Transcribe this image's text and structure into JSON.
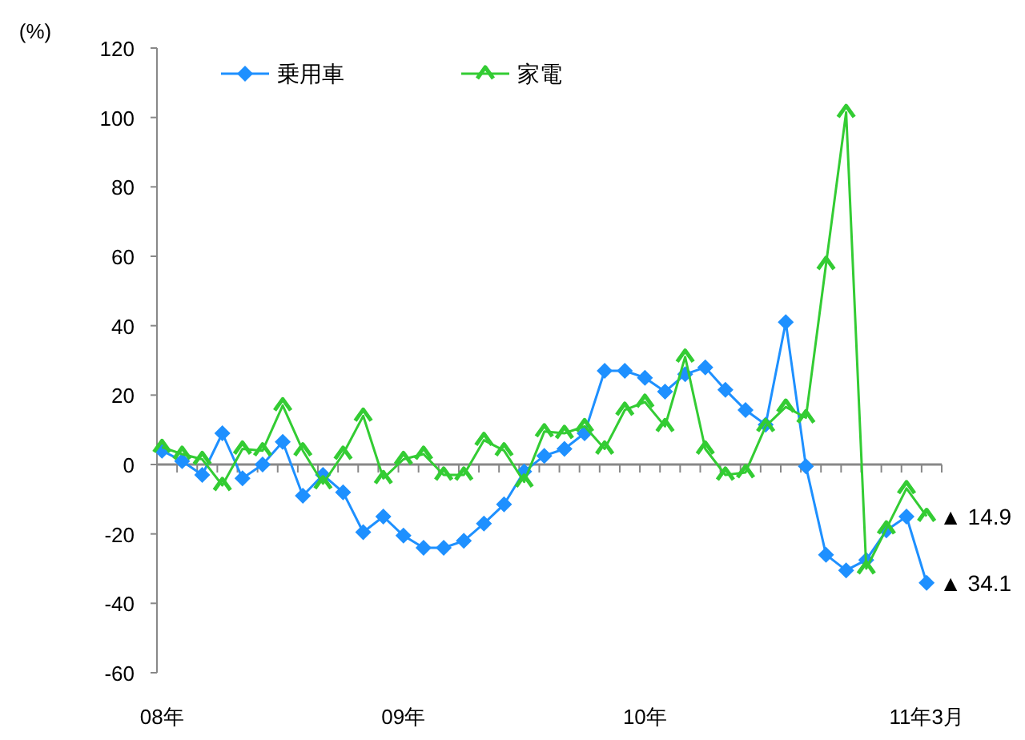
{
  "chart_data": {
    "type": "line",
    "ylabel": "(%)",
    "categories": [
      "08年",
      null,
      null,
      null,
      null,
      null,
      null,
      null,
      null,
      null,
      null,
      null,
      "09年",
      null,
      null,
      null,
      null,
      null,
      null,
      null,
      null,
      null,
      null,
      null,
      "10年",
      null,
      null,
      null,
      null,
      null,
      null,
      null,
      null,
      null,
      null,
      null,
      null,
      null,
      "11年3月"
    ],
    "series": [
      {
        "name": "乗用車",
        "color": "#1e90ff",
        "marker": "diamond",
        "values": [
          4,
          1,
          -3,
          9,
          -4,
          0,
          6.5,
          -9,
          -3,
          -8,
          -19.5,
          -15,
          -20.5,
          -24,
          -24,
          -22,
          -17,
          -11.5,
          -2,
          2.5,
          4.5,
          9,
          27,
          27,
          25,
          21,
          26,
          28,
          21.5,
          15.7,
          11.5,
          41,
          -0.5,
          -26,
          -30.5,
          -27.5,
          -19,
          -15,
          -34.1
        ]
      },
      {
        "name": "家電",
        "color": "#33cc33",
        "marker": "cross",
        "values": [
          5,
          3,
          1.5,
          -6,
          4.5,
          4,
          17,
          4,
          -5.5,
          3,
          14,
          -4,
          1.5,
          3,
          -3,
          -3,
          7,
          4,
          -5,
          9.5,
          9,
          11,
          4.5,
          15.7,
          18,
          11,
          31,
          4.5,
          -3,
          -2.3,
          11,
          16.6,
          13.5,
          57.7,
          101.5,
          -30,
          -18.5,
          -6.9,
          -14.9
        ]
      }
    ],
    "ylim": [
      -60,
      120
    ],
    "yticks": [
      -60,
      -40,
      -20,
      0,
      20,
      40,
      60,
      80,
      100,
      120
    ],
    "legend": "top left",
    "annotations": [
      {
        "text": "▲ 14.9",
        "x": "11年3月",
        "y": -14.9
      },
      {
        "text": "▲ 34.1",
        "x": "11年3月",
        "y": -34.1
      }
    ]
  }
}
